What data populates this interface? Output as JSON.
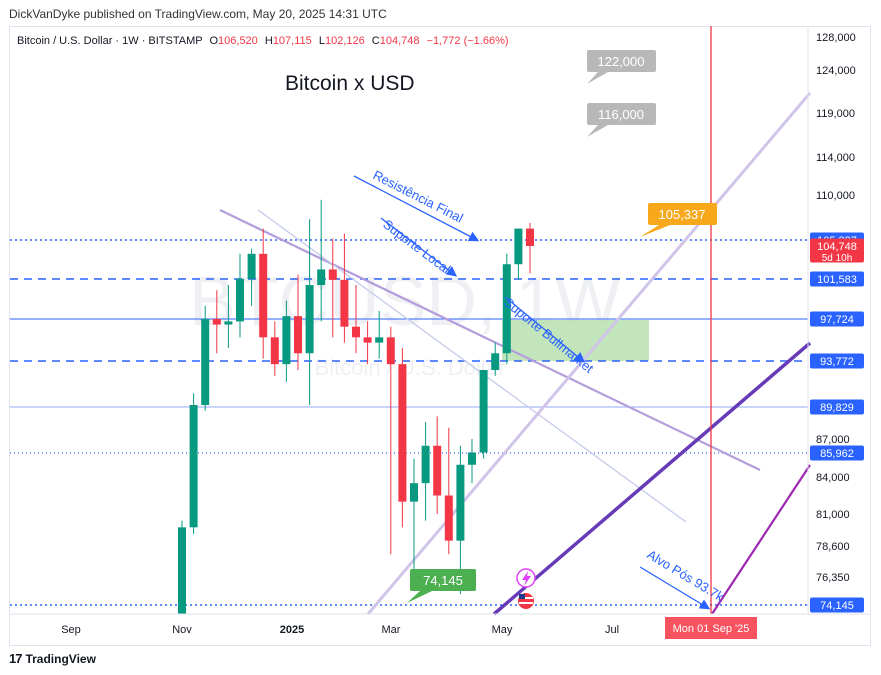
{
  "publisher": "DickVanDyke published on TradingView.com, May 20, 2025 14:31 UTC",
  "footer": {
    "logo_glyph": "17",
    "brand": "TradingView"
  },
  "watermark": "BTCUSD, 1W",
  "watermark_sub": "Bitcoin / U.S. Dollar",
  "legend": {
    "symbol": "Bitcoin / U.S. Dollar · 1W · BITSTAMP",
    "o_label": "O",
    "o": "106,520",
    "h_label": "H",
    "h": "107,115",
    "l_label": "L",
    "l": "102,126",
    "c_label": "C",
    "c": "104,748",
    "change": "−1,772 (−1.66%)"
  },
  "chart_data": {
    "type": "candlestick",
    "title": "Bitcoin x USD",
    "x_ticks": [
      "Sep",
      "Nov",
      "2025",
      "Mar",
      "May",
      "Jul"
    ],
    "y_ticks": [
      "128,000",
      "124,000",
      "119,000",
      "114,000",
      "110,000",
      "87,000",
      "84,000",
      "81,000",
      "78,600",
      "76,350"
    ],
    "y_ticks_values": [
      128000,
      124000,
      119000,
      114000,
      110000,
      87000,
      84000,
      81000,
      78600,
      76350
    ],
    "price_labels": [
      {
        "text": "105,337",
        "value": 105337,
        "color": "#2962ff",
        "text_color": "#ffffff"
      },
      {
        "text": "104,748",
        "value": 104748,
        "color": "#f23645",
        "text_color": "#ffffff",
        "sub": "5d 10h"
      },
      {
        "text": "101,583",
        "value": 101583,
        "color": "#2962ff",
        "text_color": "#ffffff"
      },
      {
        "text": "97,724",
        "value": 97724,
        "color": "#2962ff",
        "text_color": "#ffffff"
      },
      {
        "text": "93,772",
        "value": 93772,
        "color": "#2962ff",
        "text_color": "#ffffff"
      },
      {
        "text": "89,829",
        "value": 89829,
        "color": "#2962ff",
        "text_color": "#ffffff"
      },
      {
        "text": "85,962",
        "value": 85962,
        "color": "#2962ff",
        "text_color": "#ffffff"
      },
      {
        "text": "74,145",
        "value": 74145,
        "color": "#2962ff",
        "text_color": "#ffffff"
      }
    ],
    "candles": [
      {
        "o": 72000,
        "h": 80500,
        "l": 71500,
        "c": 80000
      },
      {
        "o": 80000,
        "h": 91000,
        "l": 79500,
        "c": 90000
      },
      {
        "o": 90000,
        "h": 99000,
        "l": 89500,
        "c": 97724
      },
      {
        "o": 97724,
        "h": 100500,
        "l": 94500,
        "c": 97200
      },
      {
        "o": 97200,
        "h": 101000,
        "l": 95000,
        "c": 97500
      },
      {
        "o": 97500,
        "h": 104000,
        "l": 96000,
        "c": 101600
      },
      {
        "o": 101600,
        "h": 104500,
        "l": 99000,
        "c": 104000
      },
      {
        "o": 104000,
        "h": 106500,
        "l": 94000,
        "c": 96000
      },
      {
        "o": 96000,
        "h": 97500,
        "l": 92500,
        "c": 93500
      },
      {
        "o": 93500,
        "h": 99500,
        "l": 92000,
        "c": 98000
      },
      {
        "o": 98000,
        "h": 102000,
        "l": 93000,
        "c": 94500
      },
      {
        "o": 94500,
        "h": 107500,
        "l": 90000,
        "c": 101000
      },
      {
        "o": 101000,
        "h": 109500,
        "l": 97500,
        "c": 102500
      },
      {
        "o": 102500,
        "h": 105500,
        "l": 96000,
        "c": 101500
      },
      {
        "o": 101500,
        "h": 106000,
        "l": 95500,
        "c": 97000
      },
      {
        "o": 97000,
        "h": 101000,
        "l": 94500,
        "c": 96000
      },
      {
        "o": 96000,
        "h": 97500,
        "l": 93500,
        "c": 95500
      },
      {
        "o": 95500,
        "h": 98500,
        "l": 94000,
        "c": 96000
      },
      {
        "o": 96000,
        "h": 97000,
        "l": 78000,
        "c": 93500
      },
      {
        "o": 93500,
        "h": 95000,
        "l": 80000,
        "c": 82000
      },
      {
        "o": 82000,
        "h": 85500,
        "l": 76500,
        "c": 83500
      },
      {
        "o": 83500,
        "h": 88500,
        "l": 80500,
        "c": 86500
      },
      {
        "o": 86500,
        "h": 89000,
        "l": 81000,
        "c": 82500
      },
      {
        "o": 82500,
        "h": 88000,
        "l": 78000,
        "c": 79000
      },
      {
        "o": 79000,
        "h": 86500,
        "l": 75000,
        "c": 85000
      },
      {
        "o": 85000,
        "h": 87000,
        "l": 83500,
        "c": 86000
      },
      {
        "o": 86000,
        "h": 93000,
        "l": 85500,
        "c": 93000
      },
      {
        "o": 93000,
        "h": 95500,
        "l": 92500,
        "c": 94500
      },
      {
        "o": 94500,
        "h": 104000,
        "l": 93500,
        "c": 103000
      },
      {
        "o": 103000,
        "h": 106500,
        "l": 101500,
        "c": 106520
      },
      {
        "o": 106520,
        "h": 107115,
        "l": 102126,
        "c": 104748
      }
    ],
    "annotations": {
      "callouts": [
        {
          "text": "122,000",
          "color": "#c0c0c0"
        },
        {
          "text": "116,000",
          "color": "#c0c0c0"
        },
        {
          "text": "105,337",
          "color": "#f7a81b"
        },
        {
          "text": "74,145",
          "color": "#4caf50"
        }
      ],
      "texts": [
        "Resistência Final",
        "Suporte Local",
        "Suporte Bullmarket",
        "Alvo Pós 93.7k"
      ],
      "date_label": "Mon 01 Sep '25"
    }
  }
}
